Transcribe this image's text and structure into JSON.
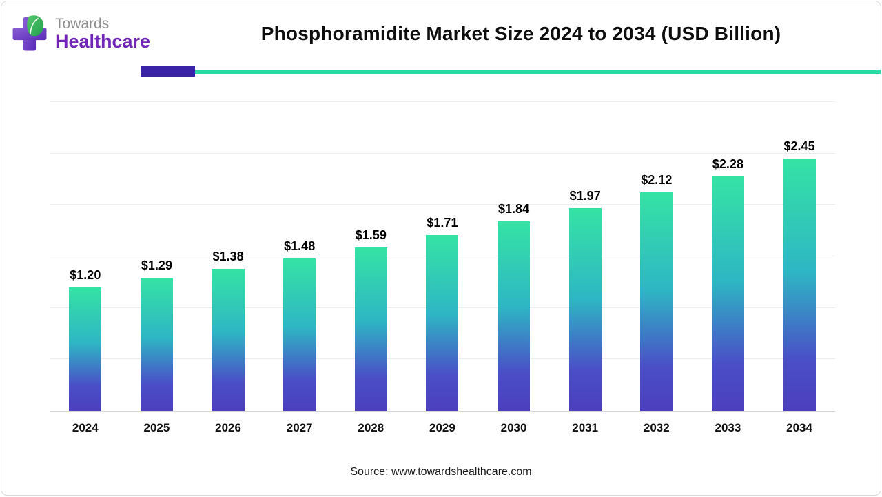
{
  "header": {
    "logo": {
      "line1": "Towards",
      "line2": "Healthcare"
    },
    "title": "Phosphoramidite Market Size 2024 to 2034 (USD Billion)"
  },
  "divider": {
    "accent_color": "#3b23a8",
    "line_color": "#2bd9a5"
  },
  "chart_data": {
    "type": "bar",
    "title": "Phosphoramidite Market Size 2024 to 2034 (USD Billion)",
    "categories": [
      "2024",
      "2025",
      "2026",
      "2027",
      "2028",
      "2029",
      "2030",
      "2031",
      "2032",
      "2033",
      "2034"
    ],
    "values": [
      1.2,
      1.29,
      1.38,
      1.48,
      1.59,
      1.71,
      1.84,
      1.97,
      2.12,
      2.28,
      2.45
    ],
    "labels": [
      "$1.20",
      "$1.29",
      "$1.38",
      "$1.48",
      "$1.59",
      "$1.71",
      "$1.84",
      "$1.97",
      "$2.12",
      "$2.28",
      "$2.45"
    ],
    "xlabel": "",
    "ylabel": "",
    "ylim": [
      0,
      3.0
    ],
    "gridline_step": 0.5,
    "grid": true,
    "legend": false,
    "unit": "USD Billion",
    "bar_gradient": {
      "top": "#35e3a4",
      "mid1": "#2eb6c4",
      "mid2": "#4a4ec7",
      "bottom": "#4c3fbe"
    }
  },
  "footer": {
    "source": "Source: www.towardshealthcare.com"
  }
}
